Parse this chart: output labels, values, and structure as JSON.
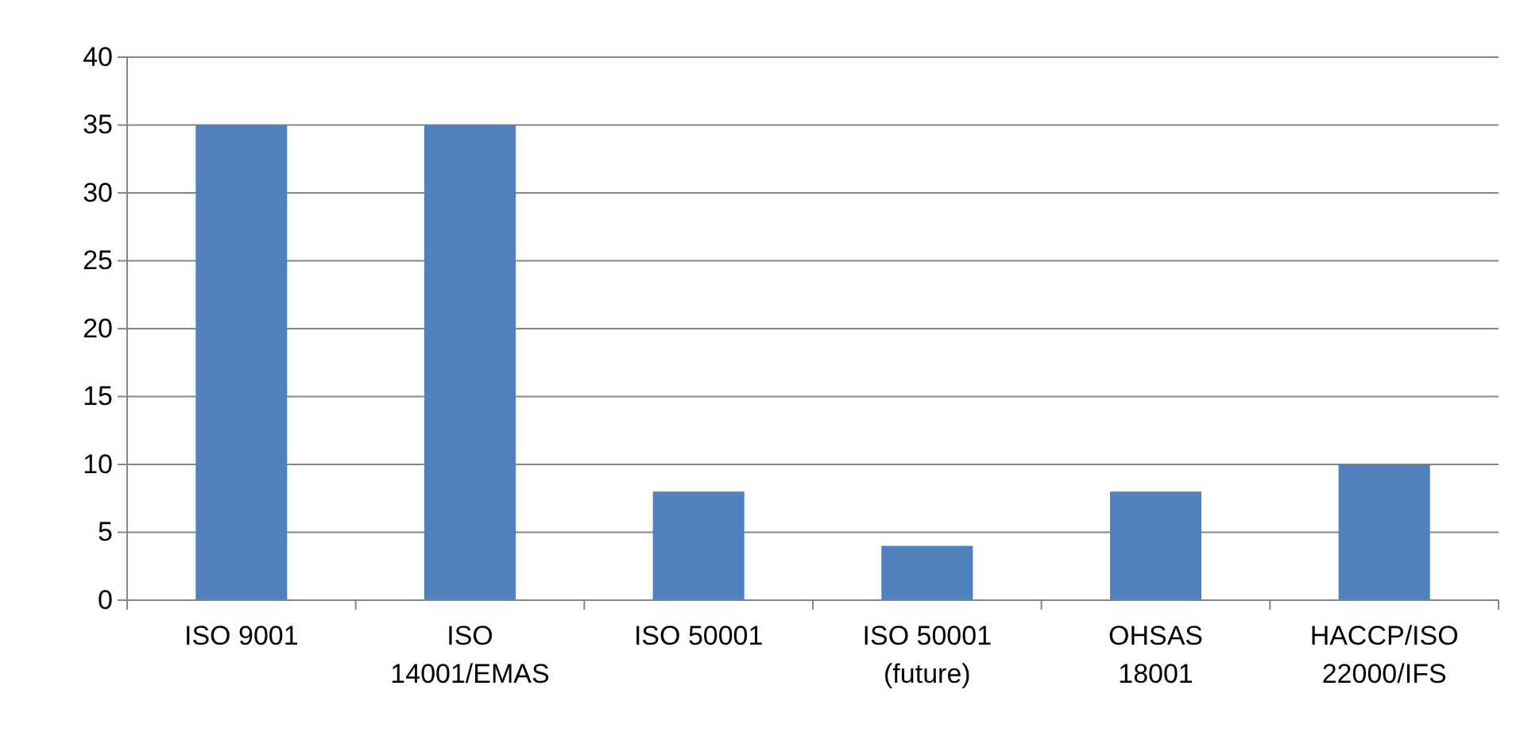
{
  "chart_data": {
    "type": "bar",
    "categories": [
      "ISO 9001",
      "ISO 14001/EMAS",
      "ISO 50001",
      "ISO 50001 (future)",
      "OHSAS 18001",
      "HACCP/ISO 22000/IFS"
    ],
    "values": [
      35,
      35,
      8,
      4,
      8,
      10
    ],
    "color": "#4f81bd",
    "ylim": [
      0,
      40
    ],
    "yticks": [
      0,
      5,
      10,
      15,
      20,
      25,
      30,
      35,
      40
    ],
    "grid": "y"
  }
}
